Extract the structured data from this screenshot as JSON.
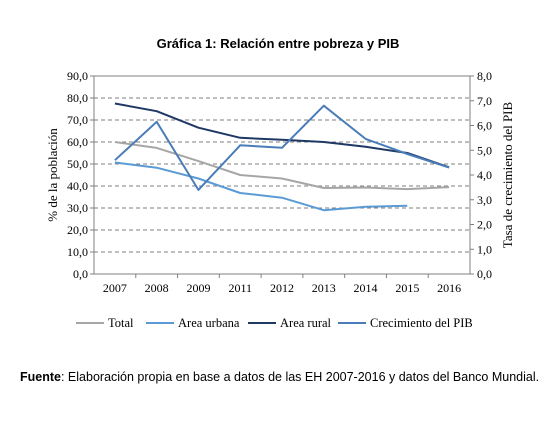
{
  "chart_data": {
    "type": "line",
    "title": "Gráfica 1: Relación entre pobreza y PIB",
    "categories": [
      "2007",
      "2008",
      "2009",
      "2011",
      "2012",
      "2013",
      "2014",
      "2015",
      "2016"
    ],
    "ylabel": "% de la población",
    "y2label": "Tasa de crecimiento del PIB",
    "ylim": [
      0,
      90
    ],
    "y2lim": [
      0,
      8
    ],
    "y_ticks": [
      "0,0",
      "10,0",
      "20,0",
      "30,0",
      "40,0",
      "50,0",
      "60,0",
      "70,0",
      "80,0",
      "90,0"
    ],
    "y2_ticks": [
      "0,0",
      "1,0",
      "2,0",
      "3,0",
      "4,0",
      "5,0",
      "6,0",
      "7,0",
      "8,0"
    ],
    "grid": "horizontal dashed",
    "legend_position": "bottom",
    "series": [
      {
        "name": "Total",
        "axis": "left",
        "color": "#a6a6a6",
        "values": [
          60.0,
          57.3,
          51.3,
          45.0,
          43.4,
          39.1,
          39.3,
          38.6,
          39.5
        ]
      },
      {
        "name": "Area urbana",
        "axis": "left",
        "color": "#5b9bd5",
        "values": [
          50.7,
          48.3,
          43.4,
          36.8,
          34.7,
          29.0,
          30.6,
          31.0,
          null
        ]
      },
      {
        "name": "Area rural",
        "axis": "left",
        "color": "#1f3864",
        "values": [
          77.5,
          74.0,
          66.5,
          61.9,
          61.0,
          60.0,
          57.8,
          55.0,
          48.5
        ]
      },
      {
        "name": "Crecimiento del PIB",
        "axis": "right",
        "color": "#4a7db8",
        "values": [
          4.6,
          6.15,
          3.4,
          5.2,
          5.1,
          6.8,
          5.46,
          4.85,
          4.3
        ]
      }
    ]
  },
  "source": {
    "label": "Fuente",
    "text": ": Elaboración propia en base a datos de las EH 2007-2016  y datos del Banco Mundial."
  }
}
